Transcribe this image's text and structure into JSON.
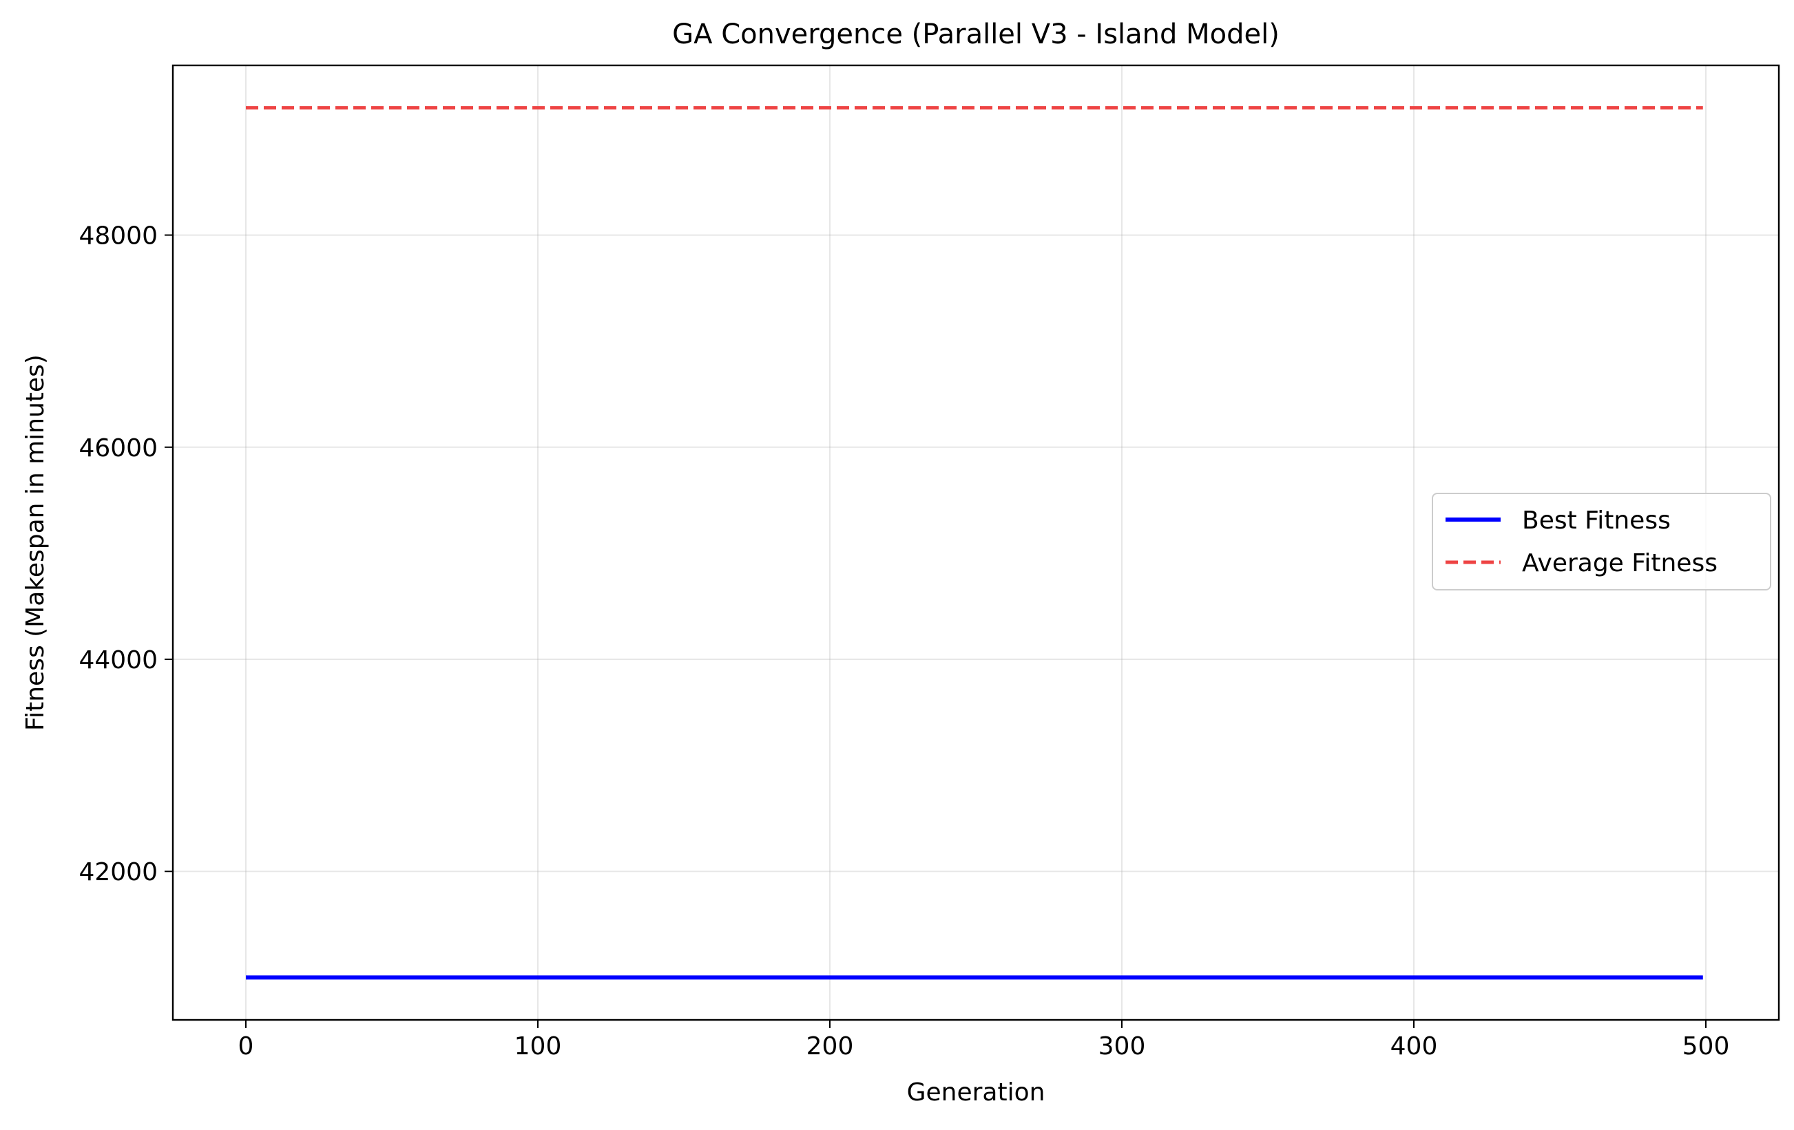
{
  "chart_data": {
    "type": "line",
    "title": "GA Convergence (Parallel V3 - Island Model)",
    "xlabel": "Generation",
    "ylabel": "Fitness (Makespan in minutes)",
    "xlim": [
      -25,
      525
    ],
    "ylim": [
      40600,
      49600
    ],
    "xticks": [
      0,
      100,
      200,
      300,
      400,
      500
    ],
    "yticks": [
      42000,
      44000,
      46000,
      48000
    ],
    "grid": true,
    "legend_position": "center-right",
    "series": [
      {
        "name": "Best Fitness",
        "color": "#0000ff",
        "style": "solid",
        "x": [
          0,
          499
        ],
        "y": [
          41000,
          41000
        ]
      },
      {
        "name": "Average Fitness",
        "color": "#ee4444",
        "style": "dashed",
        "x": [
          0,
          499
        ],
        "y": [
          49200,
          49200
        ]
      }
    ]
  }
}
